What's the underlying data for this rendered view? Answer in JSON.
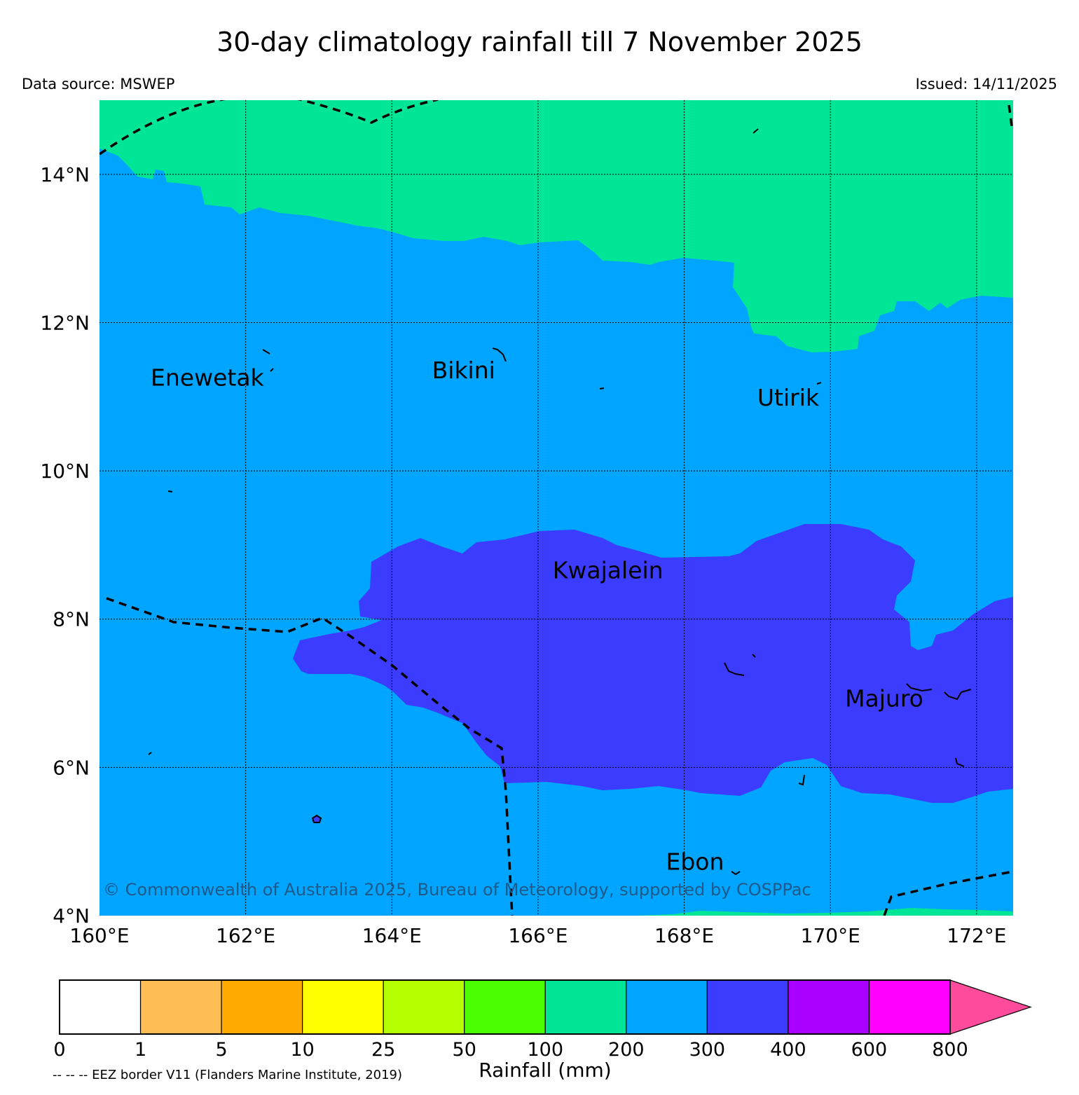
{
  "title": "30-day climatology rainfall till 7 November 2025",
  "data_source": "Data source: MSWEP",
  "issued": "Issued: 14/11/2025",
  "copyright": "© Commonwealth of Australia 2025, Bureau of Meteorology, supported by COSPPac",
  "map": {
    "lon_range": [
      160,
      172.5
    ],
    "lat_range": [
      4,
      15
    ],
    "lat_ticks": [
      4,
      6,
      8,
      10,
      12,
      14
    ],
    "lat_tick_labels": [
      "4°N",
      "6°N",
      "8°N",
      "10°N",
      "12°N",
      "14°N"
    ],
    "lon_ticks": [
      160,
      162,
      164,
      166,
      168,
      170,
      172
    ],
    "lon_tick_labels": [
      "160°E",
      "162°E",
      "164°E",
      "166°E",
      "168°E",
      "170°E",
      "172°E"
    ],
    "places": [
      {
        "name": "Enewetak",
        "lon": 160.7,
        "lat": 11.15
      },
      {
        "name": "Bikini",
        "lon": 164.55,
        "lat": 11.25
      },
      {
        "name": "Utirik",
        "lon": 169.0,
        "lat": 10.88
      },
      {
        "name": "Kwajalein",
        "lon": 166.2,
        "lat": 8.55
      },
      {
        "name": "Majuro",
        "lon": 170.2,
        "lat": 6.82
      },
      {
        "name": "Ebon",
        "lon": 167.75,
        "lat": 4.62
      }
    ],
    "region_colors": {
      "100-200": "#00e696",
      "200-300": "#00a5ff",
      "300-400": "#3c3cff"
    }
  },
  "colorbar": {
    "title": "Rainfall (mm)",
    "labels": [
      "0",
      "1",
      "5",
      "10",
      "25",
      "50",
      "100",
      "200",
      "300",
      "400",
      "600",
      "800"
    ],
    "colors": [
      "#ffffff",
      "#ffbe55",
      "#ffaa00",
      "#ffff00",
      "#b4ff00",
      "#4bff00",
      "#00e696",
      "#00a5ff",
      "#3c3cff",
      "#aa00ff",
      "#ff00ff"
    ],
    "extend_color": "#ff4b9b"
  },
  "eez_note": "-- -- -- EEZ border V11 (Flanders Marine Institute, 2019)"
}
